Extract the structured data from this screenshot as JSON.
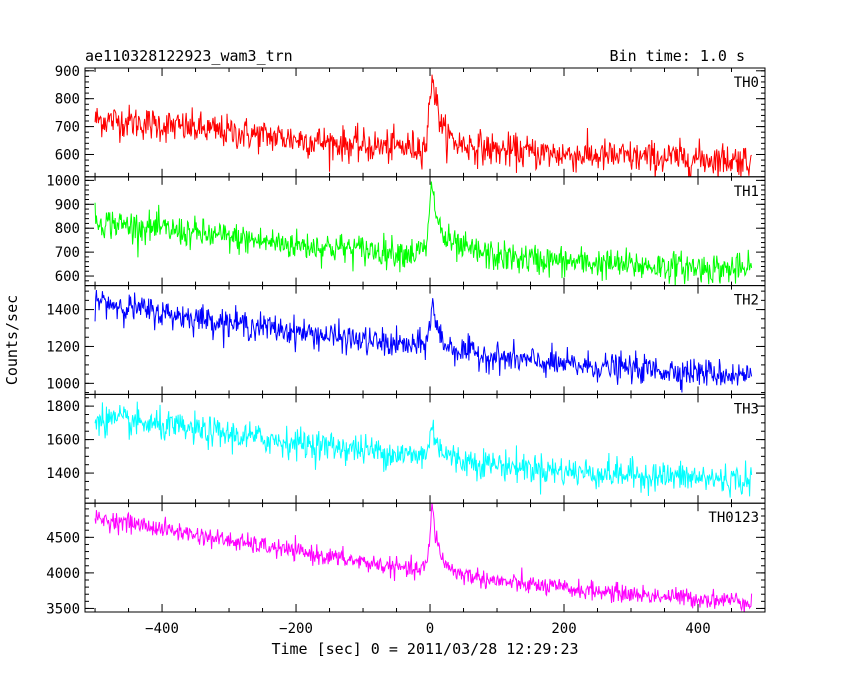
{
  "header": {
    "title": "ae110328122923_wam3_trn",
    "bin_time": "Bin time: 1.0 s"
  },
  "chart_data": {
    "type": "line",
    "xlabel": "Time [sec] 0 = 2011/03/28 12:29:23",
    "ylabel": "Counts/sec",
    "xlim": [
      -515,
      500
    ],
    "x_ticks": [
      -400,
      -200,
      0,
      200,
      400
    ],
    "x_range": [
      -500,
      480
    ],
    "grid": false,
    "legend": "none",
    "panels": [
      {
        "name": "TH0",
        "color": "#ff0000",
        "ylim": [
          520,
          910
        ],
        "yticks": [
          600,
          700,
          800,
          900
        ],
        "series": {
          "name": "TH0",
          "x": [
            -500,
            -460,
            -400,
            -300,
            -200,
            -100,
            -20,
            -5,
            0,
            3,
            8,
            20,
            40,
            100,
            200,
            300,
            400,
            480
          ],
          "values": [
            725,
            720,
            705,
            680,
            655,
            630,
            625,
            640,
            800,
            900,
            800,
            680,
            640,
            615,
            600,
            590,
            585,
            580
          ]
        },
        "noise_sd": 30
      },
      {
        "name": "TH1",
        "color": "#00ff00",
        "ylim": [
          560,
          1015
        ],
        "yticks": [
          600,
          700,
          800,
          900,
          1000
        ],
        "series": {
          "name": "TH1",
          "x": [
            -500,
            -460,
            -400,
            -300,
            -200,
            -100,
            -20,
            -5,
            0,
            3,
            8,
            20,
            40,
            100,
            200,
            300,
            400,
            480
          ],
          "values": [
            830,
            815,
            795,
            760,
            730,
            710,
            695,
            720,
            880,
            1000,
            870,
            760,
            720,
            680,
            660,
            645,
            635,
            625
          ]
        },
        "noise_sd": 32
      },
      {
        "name": "TH2",
        "color": "#0000ff",
        "ylim": [
          940,
          1530
        ],
        "yticks": [
          1000,
          1200,
          1400
        ],
        "series": {
          "name": "TH2",
          "x": [
            -500,
            -460,
            -400,
            -300,
            -200,
            -100,
            -20,
            -5,
            0,
            3,
            8,
            20,
            40,
            100,
            200,
            300,
            400,
            480
          ],
          "values": [
            1450,
            1420,
            1380,
            1330,
            1280,
            1230,
            1200,
            1220,
            1330,
            1440,
            1330,
            1220,
            1180,
            1140,
            1100,
            1080,
            1060,
            1040
          ]
        },
        "noise_sd": 38
      },
      {
        "name": "TH3",
        "color": "#00ffff",
        "ylim": [
          1220,
          1870
        ],
        "yticks": [
          1400,
          1600,
          1800
        ],
        "series": {
          "name": "TH3",
          "x": [
            -500,
            -460,
            -400,
            -300,
            -200,
            -100,
            -20,
            -5,
            0,
            3,
            8,
            20,
            40,
            100,
            200,
            300,
            400,
            480
          ],
          "values": [
            1730,
            1710,
            1680,
            1630,
            1580,
            1540,
            1500,
            1520,
            1600,
            1680,
            1620,
            1520,
            1480,
            1450,
            1410,
            1390,
            1370,
            1355
          ]
        },
        "noise_sd": 45
      },
      {
        "name": "TH0123",
        "color": "#ff00ff",
        "ylim": [
          3450,
          4980
        ],
        "yticks": [
          3500,
          4000,
          4500
        ],
        "series": {
          "name": "TH0123",
          "x": [
            -500,
            -460,
            -400,
            -300,
            -200,
            -100,
            -20,
            -5,
            0,
            3,
            8,
            20,
            40,
            100,
            200,
            300,
            400,
            480
          ],
          "values": [
            4760,
            4720,
            4620,
            4450,
            4300,
            4150,
            4030,
            4100,
            4500,
            4950,
            4550,
            4150,
            4000,
            3880,
            3780,
            3700,
            3640,
            3600
          ]
        },
        "noise_sd": 65
      }
    ]
  }
}
